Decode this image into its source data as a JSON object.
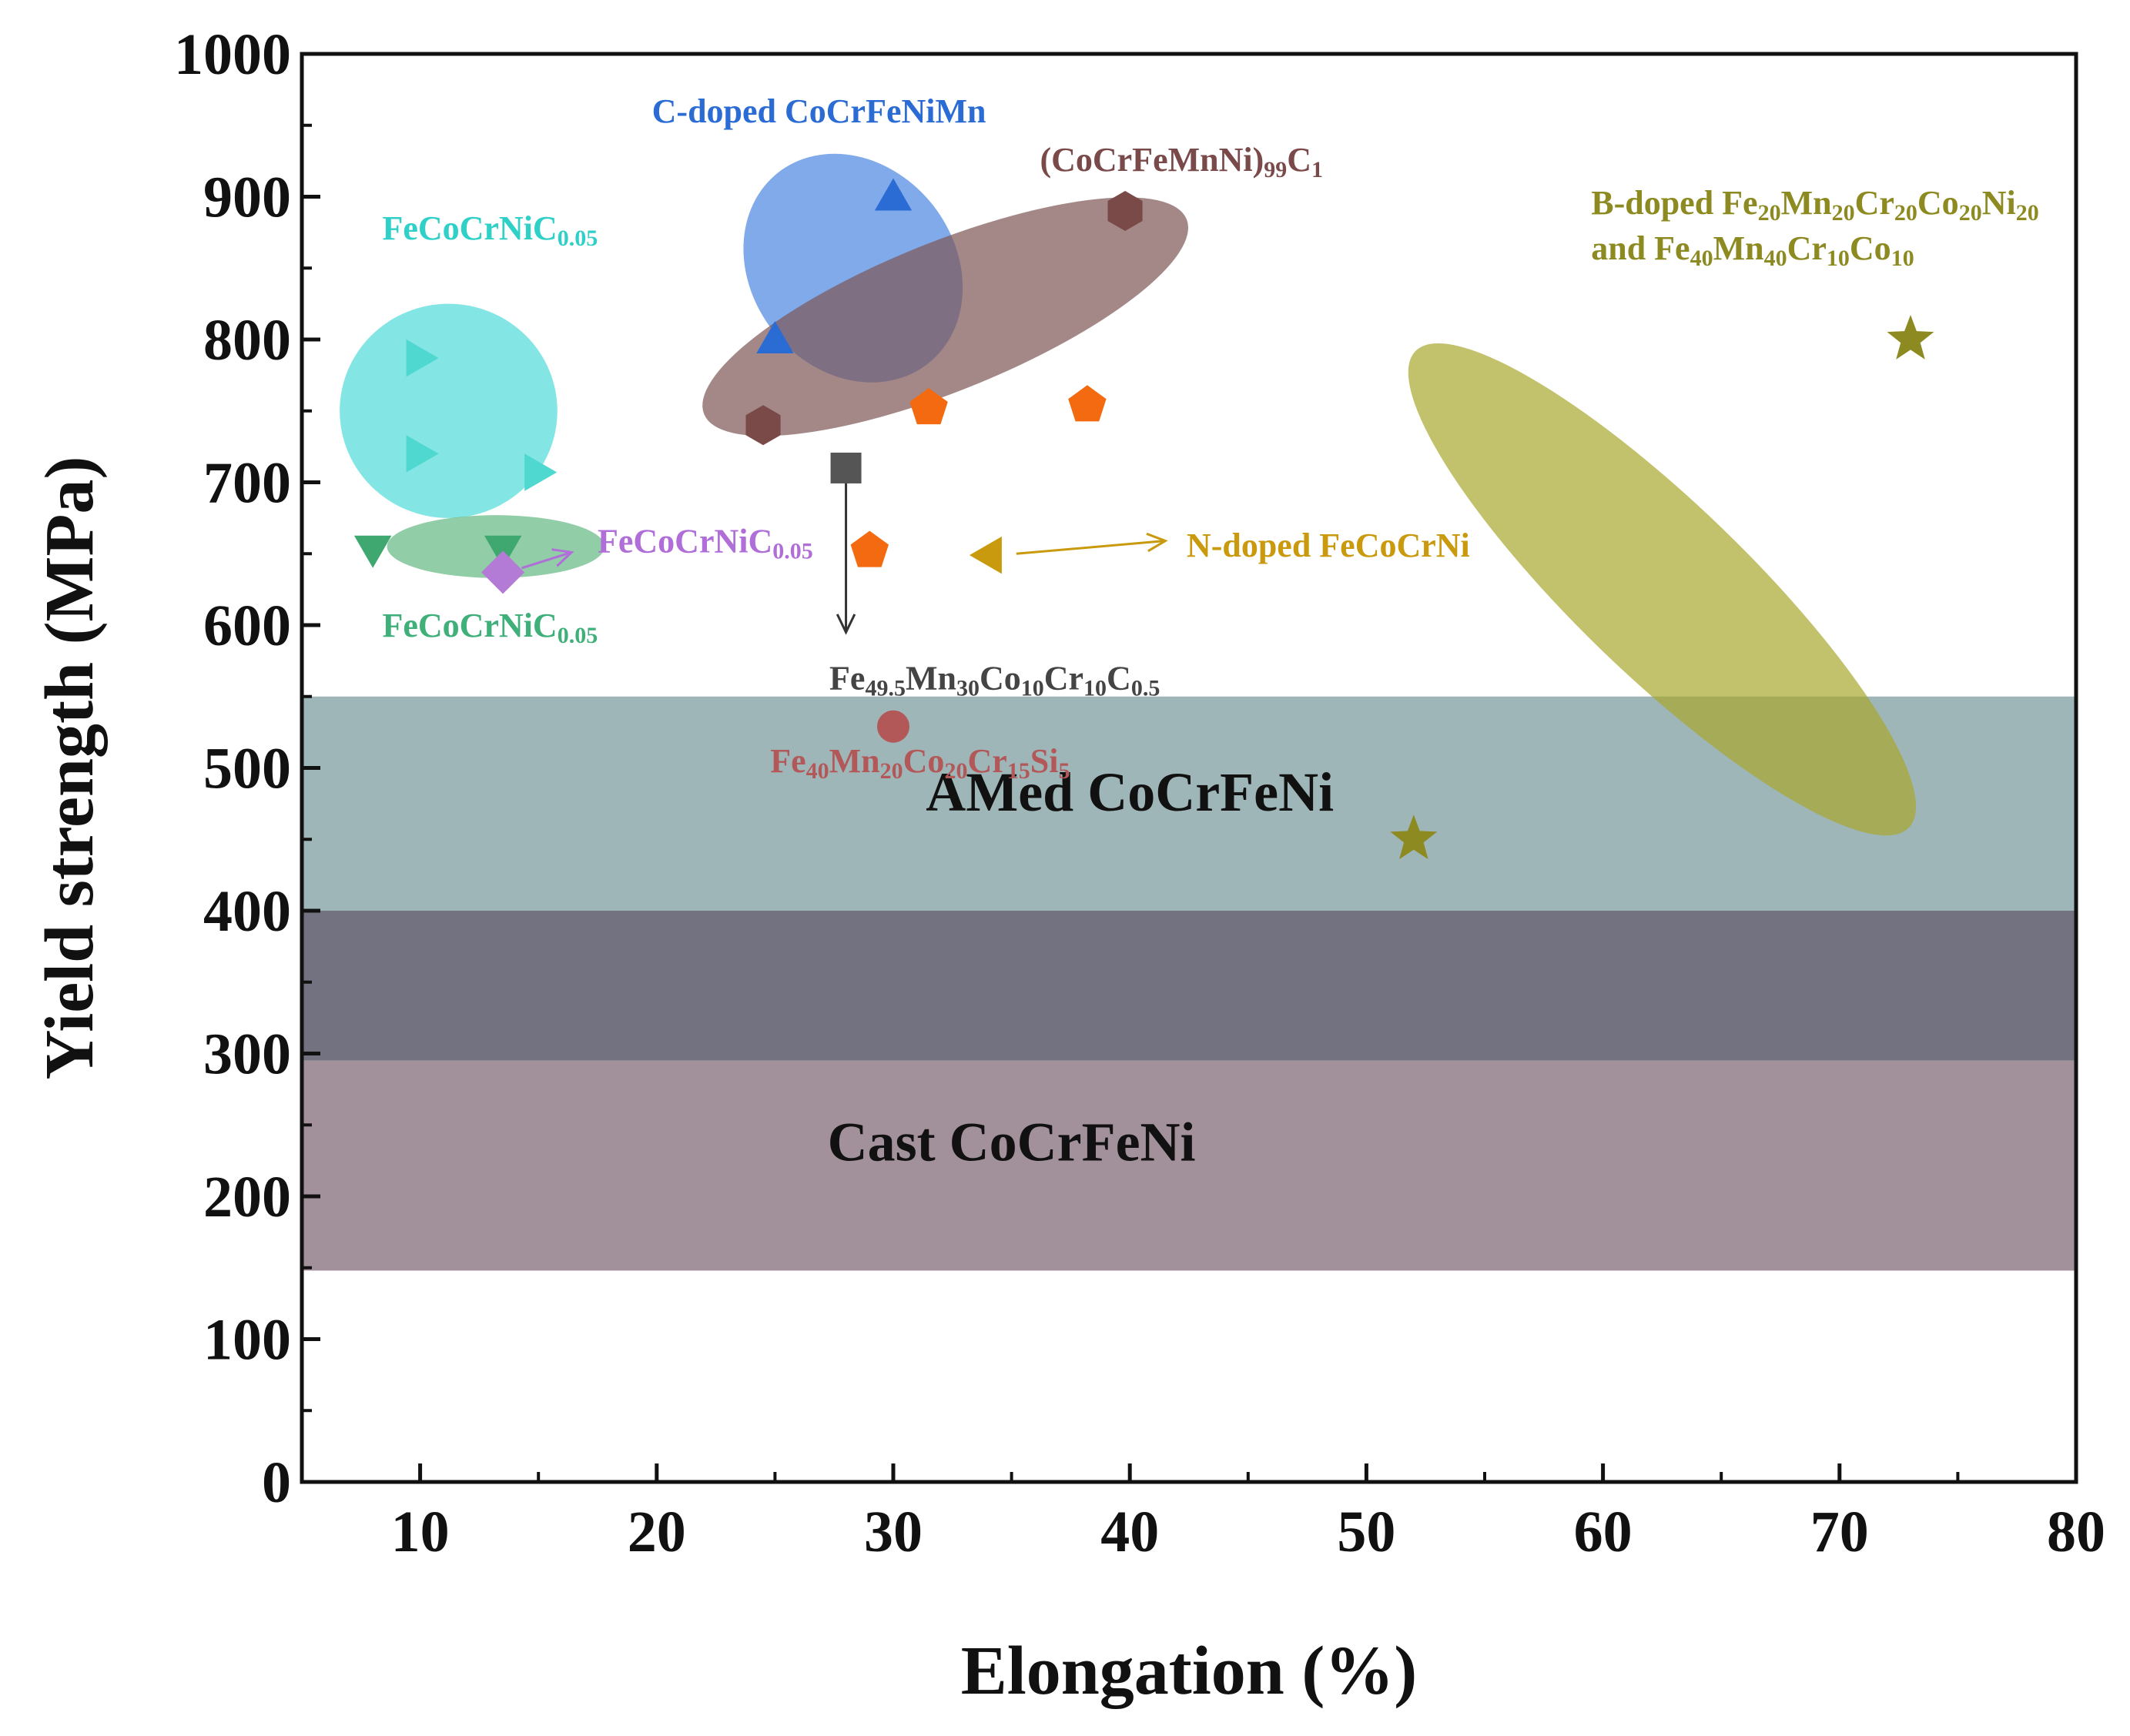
{
  "chart_data": {
    "type": "scatter",
    "xlabel": "Elongation (%)",
    "ylabel": "Yield strength (MPa)",
    "xlim": [
      5,
      80
    ],
    "ylim": [
      0,
      1000
    ],
    "x_ticks": [
      10,
      20,
      30,
      40,
      50,
      60,
      70,
      80
    ],
    "y_ticks": [
      0,
      100,
      200,
      300,
      400,
      500,
      600,
      700,
      800,
      900,
      1000
    ],
    "x_minor_step": 5,
    "y_minor_step": 50,
    "grid": false,
    "bands": [
      {
        "name": "AMed CoCrFeNi",
        "ymin": 400,
        "ymax": 550,
        "color": "#9fb6b8",
        "label": "AMed CoCrFeNi",
        "label_x": 40,
        "label_y": 470
      },
      {
        "name": "overlap",
        "ymin": 295,
        "ymax": 400,
        "color": "#737280",
        "label": ""
      },
      {
        "name": "Cast CoCrFeNi",
        "ymin": 148,
        "ymax": 295,
        "color": "#a2919b",
        "label": "Cast CoCrFeNi",
        "label_x": 35,
        "label_y": 225
      }
    ],
    "groups": [
      {
        "name": "FeCoCrNiC0.05 (cyan)",
        "marker": "triangle-right",
        "color": "#4fd8d0",
        "points": [
          {
            "x": 10,
            "y": 787
          },
          {
            "x": 10,
            "y": 720
          },
          {
            "x": 15,
            "y": 707
          }
        ],
        "ellipse": {
          "cx": 11.2,
          "cy": 750,
          "rx": 4.6,
          "ry": 75,
          "rotate_deg": 0,
          "color": "#4fdcd8"
        }
      },
      {
        "name": "FeCoCrNiC0.05 (green)",
        "marker": "triangle-down",
        "color": "#3fa870",
        "points": [
          {
            "x": 8,
            "y": 653
          },
          {
            "x": 13.5,
            "y": 653
          }
        ],
        "ellipse": {
          "cx": 13.2,
          "cy": 655,
          "rx": 4.6,
          "ry": 22,
          "rotate_deg": 0,
          "color": "#62b882"
        }
      },
      {
        "name": "FeCoCrNiC0.05 (purple)",
        "marker": "diamond",
        "color": "#b37ad6",
        "points": [
          {
            "x": 13.5,
            "y": 637
          }
        ]
      },
      {
        "name": "C-doped CoCrFeNiMn",
        "marker": "triangle-up",
        "color": "#2b6cd4",
        "points": [
          {
            "x": 25,
            "y": 800
          },
          {
            "x": 30,
            "y": 900
          }
        ],
        "ellipse": {
          "cx": 28.3,
          "cy": 850,
          "rx": 4.3,
          "ry": 85,
          "rotate_deg": 38,
          "color": "#4a86e0"
        }
      },
      {
        "name": "(CoCrFeMnNi)99C1",
        "marker": "hexagon",
        "color": "#7a4a48",
        "points": [
          {
            "x": 24.5,
            "y": 740
          },
          {
            "x": 39.8,
            "y": 890
          }
        ],
        "ellipse": {
          "cx": 32.2,
          "cy": 816,
          "rx": 11.0,
          "ry": 52,
          "rotate_deg": 22,
          "color": "#7e5656"
        }
      },
      {
        "name": "Fe49.5Mn30Co10Cr10C0.5",
        "marker": "square",
        "color": "#555555",
        "points": [
          {
            "x": 28,
            "y": 710
          }
        ]
      },
      {
        "name": "pentagons",
        "marker": "pentagon",
        "color": "#f46a10",
        "points": [
          {
            "x": 31.5,
            "y": 752
          },
          {
            "x": 38.2,
            "y": 754
          },
          {
            "x": 29,
            "y": 652
          }
        ]
      },
      {
        "name": "N-doped FeCoCrNi",
        "marker": "triangle-left",
        "color": "#c99a0e",
        "points": [
          {
            "x": 34,
            "y": 649
          }
        ]
      },
      {
        "name": "Fe40Mn20Co20Cr15Si5",
        "marker": "circle",
        "color": "#b35858",
        "points": [
          {
            "x": 30,
            "y": 529
          }
        ]
      },
      {
        "name": "B-doped",
        "marker": "star",
        "color": "#8c8a20",
        "points": [
          {
            "x": 52,
            "y": 450
          },
          {
            "x": 73,
            "y": 800
          }
        ],
        "ellipse": {
          "cx": 62.5,
          "cy": 625,
          "rx": 14.5,
          "ry": 60,
          "rotate_deg": -44,
          "color": "#a8a62e"
        }
      }
    ],
    "annotations": [
      {
        "text": "C-doped CoCrFeNiMn",
        "color": "#2b6cd4",
        "x": 19.8,
        "y": 952,
        "anchor": "start",
        "parts": [
          {
            "t": "C-doped CoCrFeNiMn"
          }
        ]
      },
      {
        "text": "(CoCrFeMnNi)99C1",
        "color": "#7a4a4a",
        "x": 36.2,
        "y": 918,
        "anchor": "start",
        "parts": [
          {
            "t": "(CoCrFeMnNi)"
          },
          {
            "t": "99",
            "sub": true
          },
          {
            "t": "C"
          },
          {
            "t": "1",
            "sub": true
          }
        ]
      },
      {
        "text": "FeCoCrNiC0.05",
        "color": "#2fd0c8",
        "x": 8.4,
        "y": 870,
        "anchor": "start",
        "parts": [
          {
            "t": "FeCoCrNiC"
          },
          {
            "t": "0.05",
            "sub": true
          }
        ]
      },
      {
        "text": "FeCoCrNiC0.05",
        "color": "#b06fd8",
        "x": 17.5,
        "y": 651,
        "anchor": "start",
        "parts": [
          {
            "t": "FeCoCrNiC"
          },
          {
            "t": "0.05",
            "sub": true
          }
        ]
      },
      {
        "text": "FeCoCrNiC0.05",
        "color": "#3fb07a",
        "x": 8.4,
        "y": 592,
        "anchor": "start",
        "parts": [
          {
            "t": "FeCoCrNiC"
          },
          {
            "t": "0.05",
            "sub": true
          }
        ]
      },
      {
        "text": "N-doped FeCoCrNi",
        "color": "#c99a0e",
        "x": 42.4,
        "y": 648,
        "anchor": "start",
        "parts": [
          {
            "t": "N-doped FeCoCrNi"
          }
        ]
      },
      {
        "text": "Fe49.5Mn30Co10Cr10C0.5",
        "color": "#444444",
        "x": 27.3,
        "y": 555,
        "anchor": "start",
        "parts": [
          {
            "t": "Fe"
          },
          {
            "t": "49.5",
            "sub": true
          },
          {
            "t": "Mn"
          },
          {
            "t": "30",
            "sub": true
          },
          {
            "t": "Co"
          },
          {
            "t": "10",
            "sub": true
          },
          {
            "t": "Cr"
          },
          {
            "t": "10",
            "sub": true
          },
          {
            "t": "C"
          },
          {
            "t": "0.5",
            "sub": true
          }
        ]
      },
      {
        "text": "Fe40Mn20Co20Cr15Si5",
        "color": "#b35858",
        "x": 24.8,
        "y": 497,
        "anchor": "start",
        "parts": [
          {
            "t": "Fe"
          },
          {
            "t": "40",
            "sub": true
          },
          {
            "t": "Mn"
          },
          {
            "t": "20",
            "sub": true
          },
          {
            "t": "Co"
          },
          {
            "t": "20",
            "sub": true
          },
          {
            "t": "Cr"
          },
          {
            "t": "15",
            "sub": true
          },
          {
            "t": "Si"
          },
          {
            "t": "5",
            "sub": true
          }
        ]
      },
      {
        "text": "B-doped Fe20Mn20Cr20Co20Ni20",
        "color": "#8c8a20",
        "x": 59.5,
        "y": 888,
        "anchor": "start",
        "parts": [
          {
            "t": "B-doped Fe"
          },
          {
            "t": "20",
            "sub": true
          },
          {
            "t": "Mn"
          },
          {
            "t": "20",
            "sub": true
          },
          {
            "t": "Cr"
          },
          {
            "t": "20",
            "sub": true
          },
          {
            "t": "Co"
          },
          {
            "t": "20",
            "sub": true
          },
          {
            "t": "Ni"
          },
          {
            "t": "20",
            "sub": true
          }
        ]
      },
      {
        "text": "and Fe40Mn40Cr10Co10",
        "color": "#8c8a20",
        "x": 59.5,
        "y": 856,
        "anchor": "start",
        "parts": [
          {
            "t": "and Fe"
          },
          {
            "t": "40",
            "sub": true
          },
          {
            "t": "Mn"
          },
          {
            "t": "40",
            "sub": true
          },
          {
            "t": "Cr"
          },
          {
            "t": "10",
            "sub": true
          },
          {
            "t": "Co"
          },
          {
            "t": "10",
            "sub": true
          }
        ]
      }
    ],
    "arrows": [
      {
        "name": "fe-mn-co-cr-c-arrow",
        "x1": 28,
        "y1": 700,
        "x2": 28,
        "y2": 595,
        "color": "#333333"
      },
      {
        "name": "n-doped-arrow",
        "x1": 35.2,
        "y1": 650,
        "x2": 41.5,
        "y2": 659,
        "color": "#c99a0e"
      },
      {
        "name": "purple-arrow",
        "x1": 14.3,
        "y1": 640,
        "x2": 16.4,
        "y2": 651,
        "color": "#b06fd8"
      }
    ]
  }
}
